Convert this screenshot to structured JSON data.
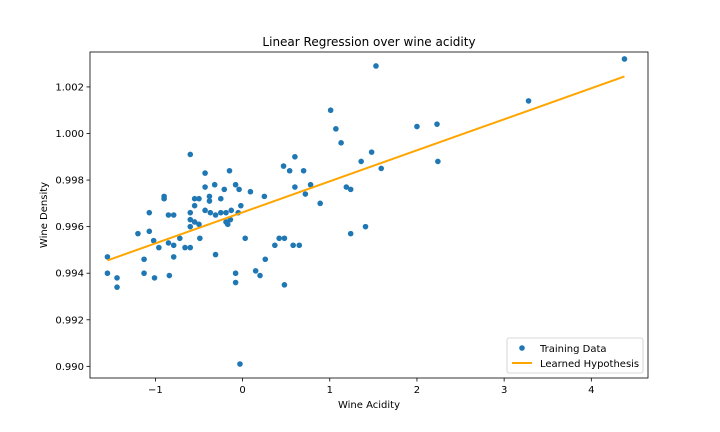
{
  "chart_data": {
    "type": "scatter",
    "title": "Linear Regression over wine acidity",
    "xlabel": "Wine Acidity",
    "ylabel": "Wine Density",
    "xlim": [
      -1.75,
      4.65
    ],
    "ylim": [
      0.9895,
      1.0035
    ],
    "xticks": [
      {
        "value": -1,
        "label": "−1"
      },
      {
        "value": 0,
        "label": "0"
      },
      {
        "value": 1,
        "label": "1"
      },
      {
        "value": 2,
        "label": "2"
      },
      {
        "value": 3,
        "label": "3"
      },
      {
        "value": 4,
        "label": "4"
      }
    ],
    "yticks": [
      {
        "value": 0.99,
        "label": "0.990"
      },
      {
        "value": 0.992,
        "label": "0.992"
      },
      {
        "value": 0.994,
        "label": "0.994"
      },
      {
        "value": 0.996,
        "label": "0.996"
      },
      {
        "value": 0.998,
        "label": "0.998"
      },
      {
        "value": 1.0,
        "label": "1.000"
      },
      {
        "value": 1.002,
        "label": "1.002"
      }
    ],
    "grid": false,
    "legend": {
      "placement": "lower-right",
      "entries": [
        "Training Data",
        "Learned Hypothesis"
      ]
    },
    "colors": {
      "scatter": "#1f77b4",
      "line": "#ffa500"
    },
    "series": [
      {
        "name": "Training Data",
        "type": "scatter",
        "points": [
          [
            -1.55,
            0.9947
          ],
          [
            -1.55,
            0.994
          ],
          [
            -1.44,
            0.9938
          ],
          [
            -1.44,
            0.9934
          ],
          [
            -1.2,
            0.9957
          ],
          [
            -1.13,
            0.9946
          ],
          [
            -1.13,
            0.994
          ],
          [
            -1.07,
            0.9966
          ],
          [
            -1.07,
            0.9958
          ],
          [
            -1.02,
            0.9954
          ],
          [
            -1.01,
            0.9938
          ],
          [
            -0.96,
            0.9951
          ],
          [
            -0.9,
            0.9973
          ],
          [
            -0.9,
            0.9972
          ],
          [
            -0.85,
            0.9965
          ],
          [
            -0.85,
            0.9953
          ],
          [
            -0.84,
            0.9939
          ],
          [
            -0.79,
            0.9965
          ],
          [
            -0.79,
            0.9952
          ],
          [
            -0.79,
            0.9947
          ],
          [
            -0.72,
            0.9955
          ],
          [
            -0.66,
            0.9951
          ],
          [
            -0.6,
            0.9991
          ],
          [
            -0.6,
            0.9966
          ],
          [
            -0.6,
            0.9963
          ],
          [
            -0.6,
            0.996
          ],
          [
            -0.6,
            0.9951
          ],
          [
            -0.55,
            0.9972
          ],
          [
            -0.55,
            0.9969
          ],
          [
            -0.55,
            0.9962
          ],
          [
            -0.5,
            0.9972
          ],
          [
            -0.5,
            0.9961
          ],
          [
            -0.49,
            0.9955
          ],
          [
            -0.43,
            0.9983
          ],
          [
            -0.43,
            0.9977
          ],
          [
            -0.43,
            0.9967
          ],
          [
            -0.38,
            0.9973
          ],
          [
            -0.38,
            0.9971
          ],
          [
            -0.37,
            0.9966
          ],
          [
            -0.32,
            0.9978
          ],
          [
            -0.31,
            0.9965
          ],
          [
            -0.31,
            0.9948
          ],
          [
            -0.25,
            0.9972
          ],
          [
            -0.25,
            0.9966
          ],
          [
            -0.21,
            0.9976
          ],
          [
            -0.19,
            0.9966
          ],
          [
            -0.19,
            0.9962
          ],
          [
            -0.17,
            0.9961
          ],
          [
            -0.15,
            0.9984
          ],
          [
            -0.14,
            0.9963
          ],
          [
            -0.13,
            0.9967
          ],
          [
            -0.08,
            0.9978
          ],
          [
            -0.08,
            0.994
          ],
          [
            -0.08,
            0.9936
          ],
          [
            -0.05,
            0.9966
          ],
          [
            -0.04,
            0.9976
          ],
          [
            -0.02,
            0.9969
          ],
          [
            -0.03,
            0.9901
          ],
          [
            0.03,
            0.9955
          ],
          [
            0.09,
            0.9975
          ],
          [
            0.15,
            0.9941
          ],
          [
            0.2,
            0.9939
          ],
          [
            0.25,
            0.9973
          ],
          [
            0.26,
            0.9946
          ],
          [
            0.37,
            0.9952
          ],
          [
            0.42,
            0.9955
          ],
          [
            0.47,
            0.9986
          ],
          [
            0.48,
            0.9955
          ],
          [
            0.48,
            0.9935
          ],
          [
            0.54,
            0.9984
          ],
          [
            0.58,
            0.9952
          ],
          [
            0.6,
            0.999
          ],
          [
            0.6,
            0.9977
          ],
          [
            0.65,
            0.9952
          ],
          [
            0.7,
            0.9984
          ],
          [
            0.72,
            0.9974
          ],
          [
            0.78,
            0.9978
          ],
          [
            0.89,
            0.997
          ],
          [
            1.01,
            1.001
          ],
          [
            1.07,
            1.0002
          ],
          [
            1.13,
            0.9996
          ],
          [
            1.19,
            0.9977
          ],
          [
            1.24,
            0.9976
          ],
          [
            1.24,
            0.9957
          ],
          [
            1.36,
            0.9988
          ],
          [
            1.41,
            0.996
          ],
          [
            1.48,
            0.9992
          ],
          [
            1.53,
            1.0029
          ],
          [
            1.59,
            0.9985
          ],
          [
            2.0,
            1.0003
          ],
          [
            2.23,
            1.0004
          ],
          [
            2.24,
            0.9988
          ],
          [
            3.28,
            1.0014
          ],
          [
            4.38,
            1.0032
          ]
        ]
      },
      {
        "name": "Learned Hypothesis",
        "type": "line",
        "points": [
          [
            -1.55,
            0.99455
          ],
          [
            4.38,
            1.00245
          ]
        ]
      }
    ]
  }
}
